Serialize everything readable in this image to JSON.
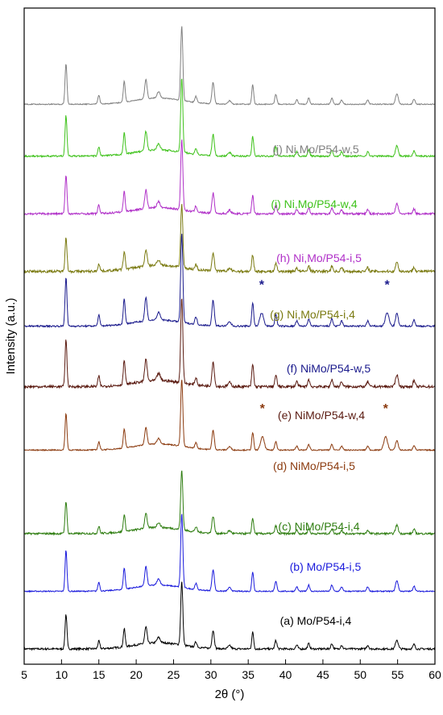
{
  "chart_data": {
    "type": "line",
    "xlabel": "2θ (°)",
    "ylabel": "Intensity (a.u.)",
    "xlim": [
      5,
      60
    ],
    "x_ticks": [
      5,
      10,
      15,
      20,
      25,
      30,
      35,
      40,
      45,
      50,
      55,
      60
    ],
    "y_ticks_shown": false,
    "grid": false,
    "legend": "labels above each trace",
    "common_peaks_2theta": [
      10.6,
      15.0,
      18.4,
      21.3,
      23.0,
      26.1,
      28.0,
      30.3,
      35.6,
      38.7,
      41.5,
      43.1,
      46.2,
      47.5,
      51.0,
      54.9,
      57.2
    ],
    "series": [
      {
        "name": "(a) Mo/P54-i,4",
        "color": "#000000",
        "baseline": 0.0,
        "peak_scale": 0.85,
        "noise": 0.6,
        "stars": []
      },
      {
        "name": "(b) Mo/P54-i,5",
        "color": "#1a1adc",
        "baseline": 1.0,
        "peak_scale": 1.0,
        "noise": 0.35,
        "stars": []
      },
      {
        "name": "(c) NiMo/P54-i,4",
        "color": "#2e7d10",
        "baseline": 2.0,
        "peak_scale": 0.8,
        "noise": 0.6,
        "stars": []
      },
      {
        "name": "(d) NiMo/P54-i,5",
        "color": "#8b3a0e",
        "baseline": 3.45,
        "peak_scale": 0.9,
        "noise": 0.35,
        "stars": [
          36.9,
          53.4
        ]
      },
      {
        "name": "(e) NiMo/P54-w,4",
        "color": "#5a1a10",
        "baseline": 4.55,
        "peak_scale": 1.15,
        "noise": 0.8,
        "stars": []
      },
      {
        "name": "(f) NiMo/P54-w,5",
        "color": "#1a1a8c",
        "baseline": 5.6,
        "peak_scale": 1.2,
        "noise": 0.5,
        "stars": [
          36.8,
          53.6
        ]
      },
      {
        "name": "(g) Ni,Mo/P54-i,4",
        "color": "#7a7a10",
        "baseline": 6.55,
        "peak_scale": 0.85,
        "noise": 0.8,
        "stars": []
      },
      {
        "name": "(h) Ni,Mo/P54-i,5",
        "color": "#b030c8",
        "baseline": 7.55,
        "peak_scale": 0.95,
        "noise": 0.6,
        "stars": []
      },
      {
        "name": "(i) Ni,Mo/P54-w,4",
        "color": "#3fc21b",
        "baseline": 8.55,
        "peak_scale": 1.0,
        "noise": 0.5,
        "stars": []
      },
      {
        "name": "(j) Ni,Mo/P54-w,5",
        "color": "#808080",
        "baseline": 9.45,
        "peak_scale": 1.0,
        "noise": 0.3,
        "stars": []
      }
    ],
    "star_symbol": "*",
    "star_colors": {
      "(d)": "#a0400e",
      "(f)": "#1a1a8c"
    }
  }
}
